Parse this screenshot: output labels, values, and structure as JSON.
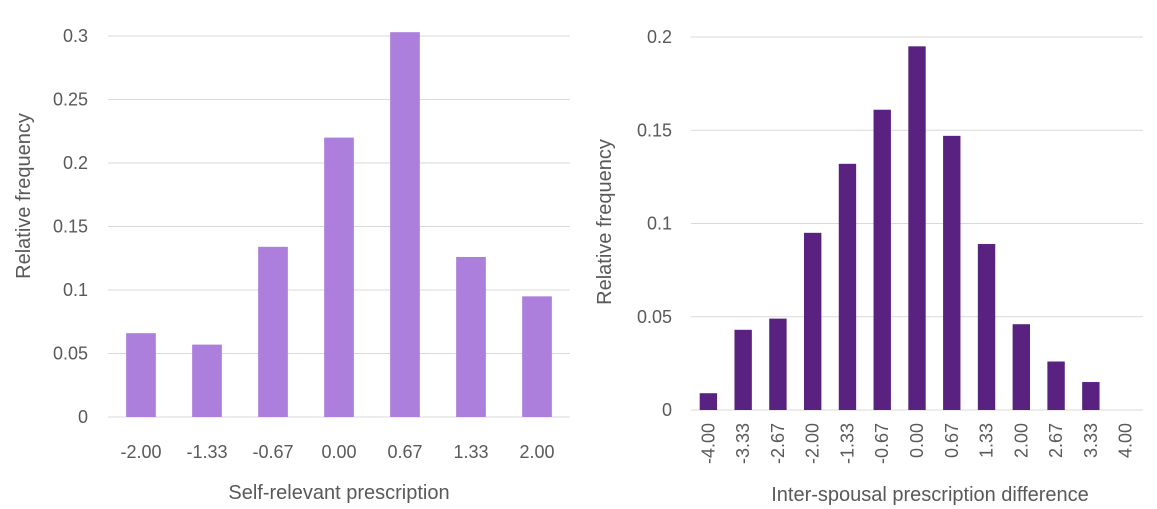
{
  "chart_data": [
    {
      "type": "bar",
      "title": "",
      "xlabel": "Self-relevant prescription",
      "ylabel": "Relative frequency",
      "categories": [
        "-2.00",
        "-1.33",
        "-0.67",
        "0.00",
        "0.67",
        "1.33",
        "2.00"
      ],
      "values": [
        0.066,
        0.057,
        0.134,
        0.22,
        0.303,
        0.126,
        0.095
      ],
      "ylim": [
        0,
        0.3
      ],
      "yticks": [
        "0",
        "0.05",
        "0.1",
        "0.15",
        "0.2",
        "0.25",
        "0.3"
      ],
      "grid": true,
      "legend": "none",
      "color": "#ab7fdb"
    },
    {
      "type": "bar",
      "title": "",
      "xlabel": "Inter-spousal prescription difference",
      "ylabel": "Relative frequency",
      "categories": [
        "-4.00",
        "-3.33",
        "-2.67",
        "-2.00",
        "-1.33",
        "-0.67",
        "0.00",
        "0.67",
        "1.33",
        "2.00",
        "2.67",
        "3.33",
        "4.00"
      ],
      "values": [
        0.009,
        0.043,
        0.049,
        0.095,
        0.132,
        0.161,
        0.195,
        0.147,
        0.089,
        0.046,
        0.026,
        0.015,
        0
      ],
      "ylim": [
        0,
        0.2
      ],
      "yticks": [
        "0",
        "0.05",
        "0.1",
        "0.15",
        "0.2"
      ],
      "grid": true,
      "legend": "none",
      "color": "#5a2280"
    }
  ]
}
